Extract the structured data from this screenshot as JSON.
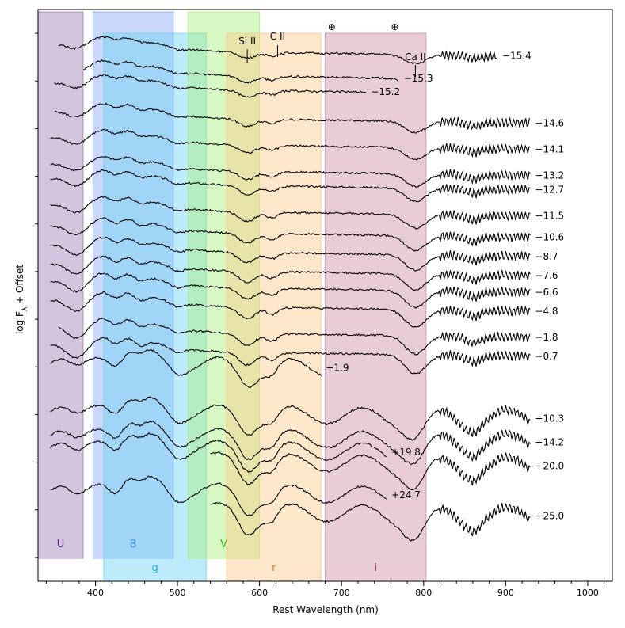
{
  "chart_data": {
    "type": "line",
    "xlabel": "Rest Wavelength (nm)",
    "ylabel_prefix": "log F",
    "ylabel_sub": "λ",
    "ylabel_suffix": " + Offset",
    "xlim": [
      330,
      1030
    ],
    "x_ticks": [
      400,
      500,
      600,
      700,
      800,
      900,
      1000
    ],
    "ylim": [
      0,
      24
    ],
    "grid": false,
    "filter_bands": [
      {
        "name": "U",
        "range": [
          330,
          385
        ],
        "row": "upper",
        "color": "#9b7fb3",
        "label_color": "#4b1a7a"
      },
      {
        "name": "B",
        "range": [
          397,
          495
        ],
        "row": "upper",
        "color": "#8aa6f2",
        "label_color": "#1a55cc"
      },
      {
        "name": "g",
        "range": [
          410,
          535
        ],
        "row": "lower",
        "color": "#6fd2f7",
        "label_color": "#1aa9d9"
      },
      {
        "name": "V",
        "range": [
          513,
          600
        ],
        "row": "upper",
        "color": "#a6ef7a",
        "label_color": "#3cb01c"
      },
      {
        "name": "r",
        "range": [
          560,
          675
        ],
        "row": "lower",
        "color": "#fbc98a",
        "label_color": "#e07b12"
      },
      {
        "name": "i",
        "range": [
          680,
          803
        ],
        "row": "lower",
        "color": "#cc8ea8",
        "label_color": "#8a1d4a"
      }
    ],
    "line_annotations": [
      {
        "label": "Si II",
        "x": 585
      },
      {
        "label": "C II",
        "x": 622
      },
      {
        "label": "Ca II",
        "x": 790
      }
    ],
    "telluric_markers": [
      {
        "symbol": "⊕",
        "x": 688
      },
      {
        "symbol": "⊕",
        "x": 765
      }
    ],
    "series": [
      {
        "name": "−15.4",
        "x_range": [
          355,
          890
        ],
        "offset": 22.2
      },
      {
        "name": "−15.3",
        "x_range": [
          385,
          770
        ],
        "offset": 21.2
      },
      {
        "name": "−15.2",
        "x_range": [
          350,
          730
        ],
        "offset": 20.6
      },
      {
        "name": "−14.6",
        "x_range": [
          350,
          930
        ],
        "offset": 19.4
      },
      {
        "name": "−14.1",
        "x_range": [
          345,
          930
        ],
        "offset": 18.3
      },
      {
        "name": "−13.2",
        "x_range": [
          345,
          930
        ],
        "offset": 17.2
      },
      {
        "name": "−12.7",
        "x_range": [
          345,
          930
        ],
        "offset": 16.6
      },
      {
        "name": "−11.5",
        "x_range": [
          345,
          930
        ],
        "offset": 15.5
      },
      {
        "name": "−10.6",
        "x_range": [
          345,
          930
        ],
        "offset": 14.6
      },
      {
        "name": "−8.7",
        "x_range": [
          345,
          930
        ],
        "offset": 13.8
      },
      {
        "name": "−7.6",
        "x_range": [
          345,
          930
        ],
        "offset": 13.0
      },
      {
        "name": "−6.6",
        "x_range": [
          345,
          930
        ],
        "offset": 12.3
      },
      {
        "name": "−4.8",
        "x_range": [
          345,
          930
        ],
        "offset": 11.5
      },
      {
        "name": "−1.8",
        "x_range": [
          355,
          930
        ],
        "offset": 10.4
      },
      {
        "name": "−0.7",
        "x_range": [
          345,
          930
        ],
        "offset": 9.6
      },
      {
        "name": "+1.9",
        "x_range": [
          345,
          675
        ],
        "offset": 9.0
      },
      {
        "name": "+10.3",
        "x_range": [
          345,
          930
        ],
        "offset": 7.0
      },
      {
        "name": "+14.2",
        "x_range": [
          345,
          930
        ],
        "offset": 6.0
      },
      {
        "name": "+19.8",
        "x_range": [
          345,
          755
        ],
        "offset": 5.5
      },
      {
        "name": "+20.0",
        "x_range": [
          540,
          930
        ],
        "offset": 5.0
      },
      {
        "name": "+24.7",
        "x_range": [
          345,
          755
        ],
        "offset": 3.7
      },
      {
        "name": "+25.0",
        "x_range": [
          540,
          930
        ],
        "offset": 2.9
      }
    ]
  }
}
